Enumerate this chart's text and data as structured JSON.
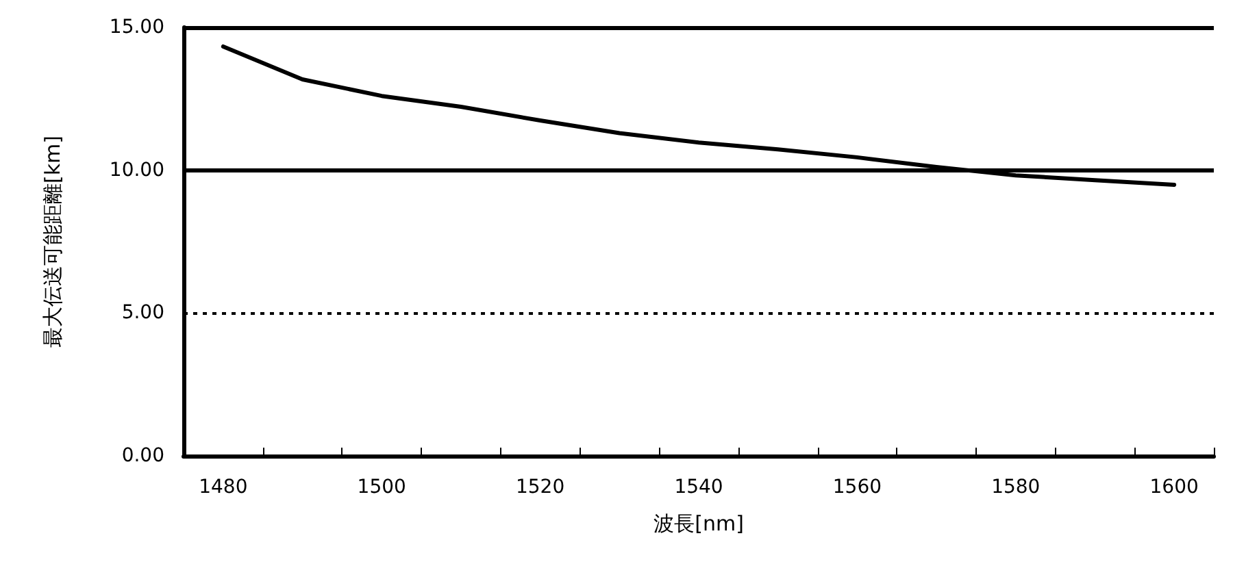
{
  "chart_data": {
    "type": "line",
    "xlabel": "波長[nm]",
    "ylabel": "最大伝送可能距離[km]",
    "categories": [
      "1480",
      null,
      "1500",
      null,
      "1520",
      null,
      "1540",
      null,
      "1560",
      null,
      "1580",
      null,
      "1600"
    ],
    "series": [
      {
        "color": "#000000",
        "values": [
          14.33,
          13.18,
          12.6,
          12.22,
          11.74,
          11.3,
          10.97,
          10.73,
          10.45,
          10.11,
          9.82,
          9.65,
          9.49
        ]
      }
    ],
    "ylim": [
      0,
      15
    ],
    "yticks": [
      {
        "value": 0,
        "label": "0.00"
      },
      {
        "value": 5,
        "label": "5.00"
      },
      {
        "value": 10,
        "label": "10.00"
      },
      {
        "value": 15,
        "label": "15.00"
      }
    ],
    "marker": "none",
    "line_style": "solid",
    "ref_lines": [
      {
        "axis": "y",
        "value": 5,
        "color": "#000000",
        "line_style": "dotted"
      },
      {
        "axis": "y",
        "value": 10,
        "color": "#000000",
        "line_style": "solid"
      },
      {
        "axis": "y",
        "value": 15,
        "color": "#000000",
        "line_style": "solid"
      }
    ]
  }
}
